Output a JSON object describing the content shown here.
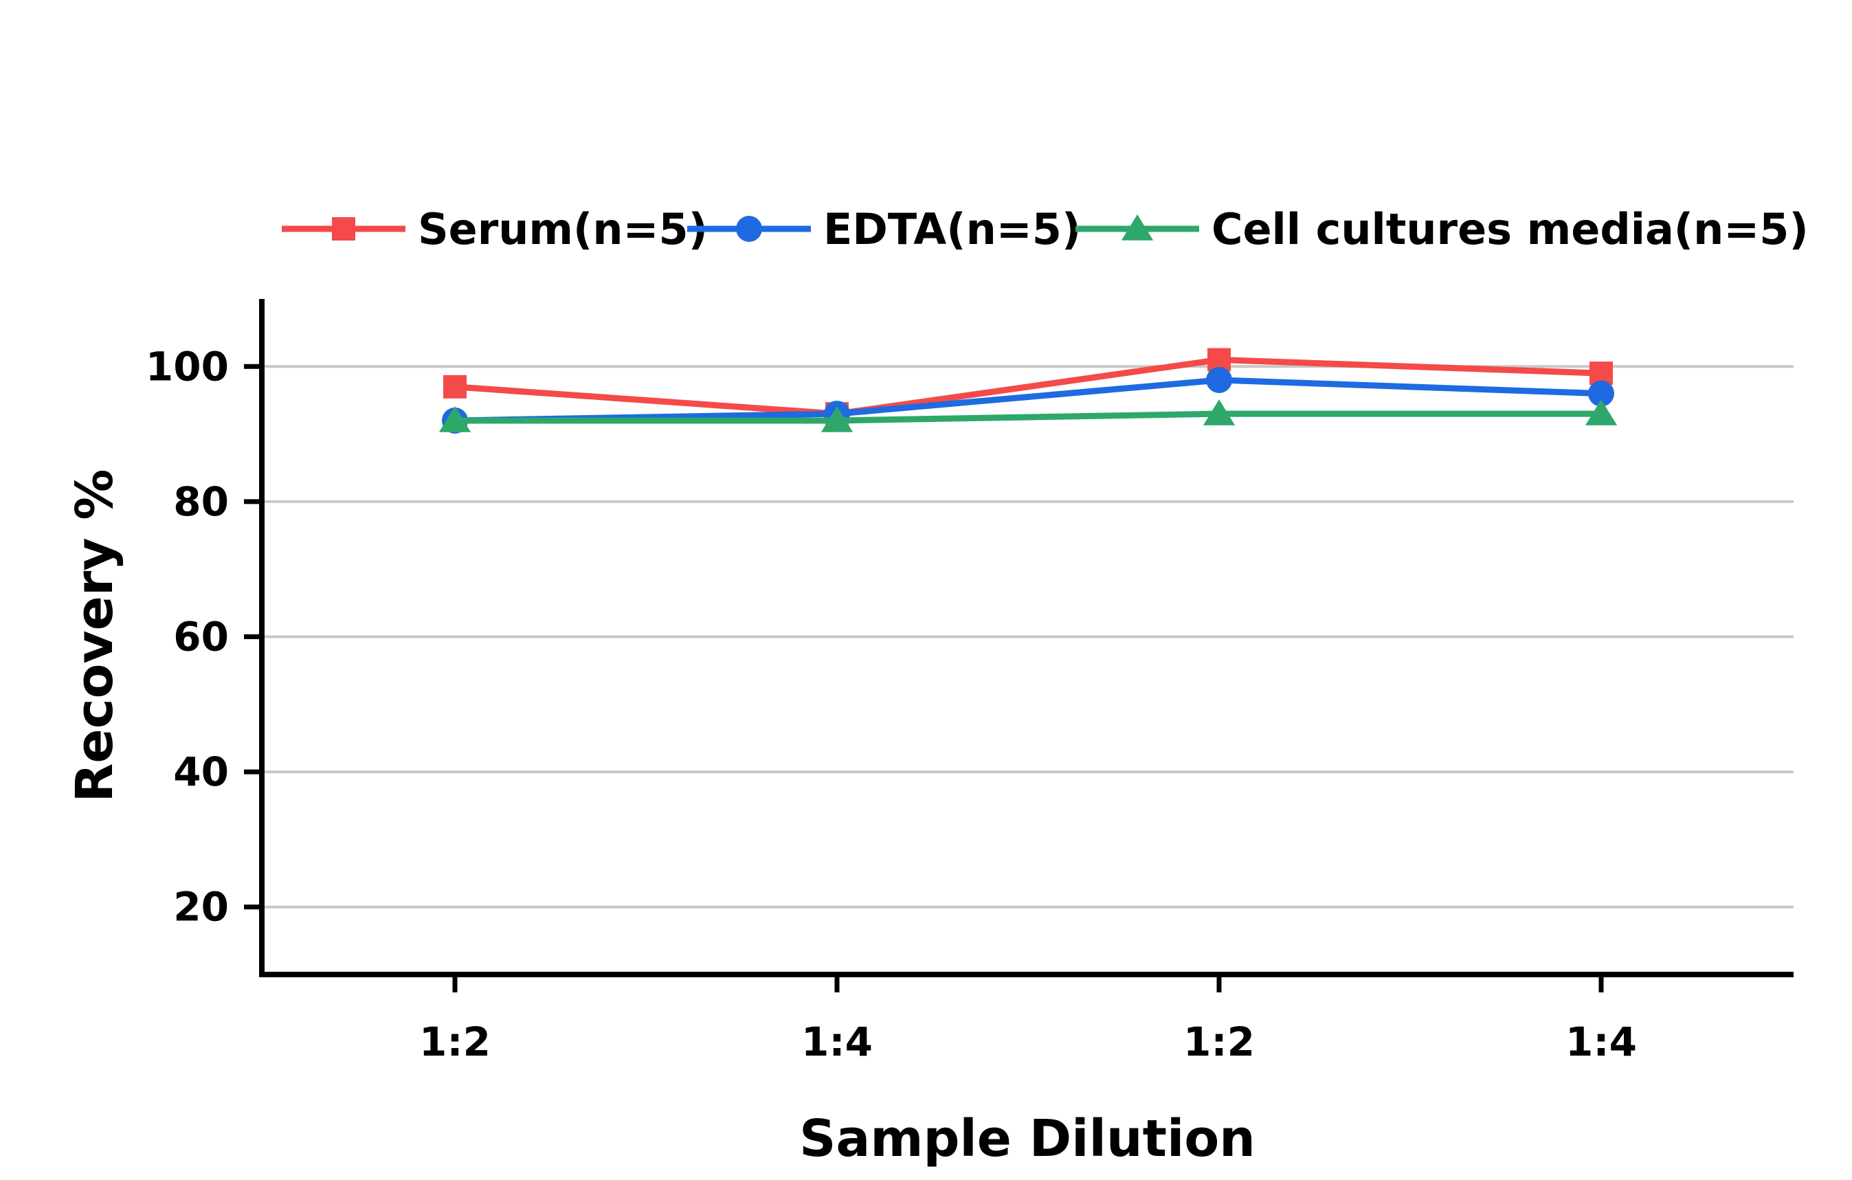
{
  "chart_data": {
    "type": "line",
    "title": "",
    "xlabel": "Sample Dilution",
    "ylabel": "Recovery %",
    "categories": [
      "1:2",
      "1:4",
      "1:2",
      "1:4"
    ],
    "ylim": [
      10,
      110
    ],
    "yticks": [
      20,
      40,
      60,
      80,
      100
    ],
    "grid": "horizontal",
    "legend_position": "top",
    "series": [
      {
        "name": "Serum(n=5)",
        "values": [
          97,
          93,
          101,
          99
        ],
        "color": "#f44a4a",
        "marker": "square"
      },
      {
        "name": "EDTA(n=5)",
        "values": [
          92,
          93,
          98,
          96
        ],
        "color": "#1f6ae0",
        "marker": "circle"
      },
      {
        "name": "Cell cultures media(n=5)",
        "values": [
          92,
          92,
          93,
          93
        ],
        "color": "#2ea86a",
        "marker": "triangle"
      }
    ]
  }
}
